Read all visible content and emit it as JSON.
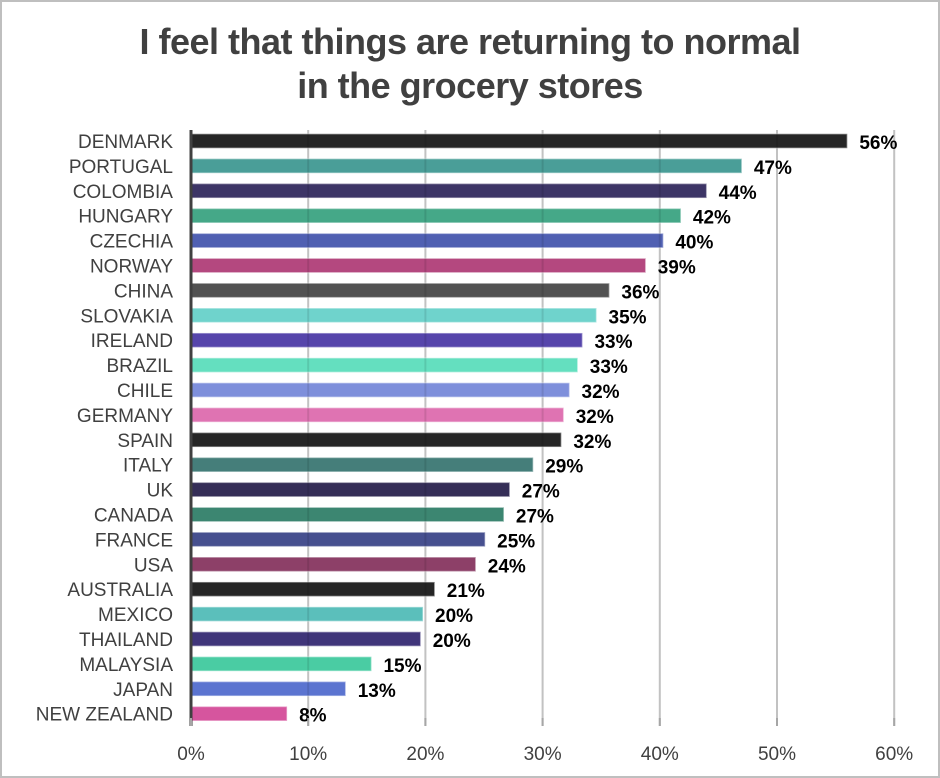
{
  "chart_data": {
    "type": "bar",
    "orientation": "horizontal",
    "title": "I feel that things are returning to normal in the grocery stores",
    "title_lines": [
      "I feel that things are returning to normal",
      "in the grocery stores"
    ],
    "xlabel": "",
    "ylabel": "",
    "xlim": [
      0,
      60
    ],
    "x_ticks": [
      0,
      10,
      20,
      30,
      40,
      50,
      60
    ],
    "x_tick_labels": [
      "0%",
      "10%",
      "20%",
      "30%",
      "40%",
      "50%",
      "60%"
    ],
    "grid": true,
    "legend": "none",
    "categories": [
      "DENMARK",
      "PORTUGAL",
      "COLOMBIA",
      "HUNGARY",
      "CZECHIA",
      "NORWAY",
      "CHINA",
      "SLOVAKIA",
      "IRELAND",
      "BRAZIL",
      "CHILE",
      "GERMANY",
      "SPAIN",
      "ITALY",
      "UK",
      "CANADA",
      "FRANCE",
      "USA",
      "AUSTRALIA",
      "MEXICO",
      "THAILAND",
      "MALAYSIA",
      "JAPAN",
      "NEW ZEALAND"
    ],
    "values": [
      56,
      47,
      44,
      42,
      40,
      39,
      36,
      35,
      33,
      33,
      32,
      32,
      32,
      29,
      27,
      27,
      25,
      24,
      21,
      20,
      20,
      15,
      13,
      8
    ],
    "value_labels": [
      "56%",
      "47%",
      "44%",
      "42%",
      "40%",
      "39%",
      "36%",
      "35%",
      "33%",
      "33%",
      "32%",
      "32%",
      "32%",
      "29%",
      "27%",
      "27%",
      "25%",
      "24%",
      "21%",
      "20%",
      "20%",
      "15%",
      "13%",
      "8%"
    ],
    "bar_values_precise": [
      56.0,
      47.0,
      44.0,
      41.8,
      40.3,
      38.8,
      35.7,
      34.6,
      33.4,
      33.0,
      32.3,
      31.8,
      31.6,
      29.2,
      27.2,
      26.7,
      25.1,
      24.3,
      20.8,
      19.8,
      19.6,
      15.4,
      13.2,
      8.2
    ],
    "colors": [
      "#262626",
      "#4a9e98",
      "#3d3566",
      "#45a888",
      "#5060b2",
      "#b4487f",
      "#525252",
      "#6fd3cc",
      "#5645ab",
      "#64dfbf",
      "#7e8fdb",
      "#df73b2",
      "#262626",
      "#457e7a",
      "#352e57",
      "#3c8671",
      "#47508f",
      "#8d4068",
      "#262626",
      "#5bbfbb",
      "#40357a",
      "#4acca3",
      "#5b74d0",
      "#d6559e"
    ]
  }
}
